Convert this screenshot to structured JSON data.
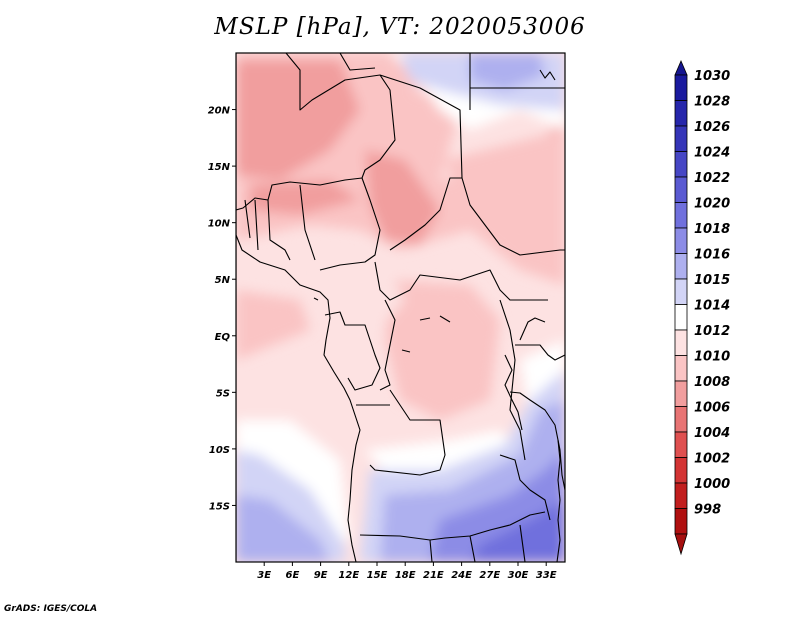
{
  "title": "MSLP [hPa], VT: 2020053006",
  "credit": "GrADS: IGES/COLA",
  "map": {
    "lon_range": [
      0,
      35
    ],
    "lat_range": [
      -20,
      25
    ],
    "lon_ticks": [
      {
        "value": 3,
        "label": "3E"
      },
      {
        "value": 6,
        "label": "6E"
      },
      {
        "value": 9,
        "label": "9E"
      },
      {
        "value": 12,
        "label": "12E"
      },
      {
        "value": 15,
        "label": "15E"
      },
      {
        "value": 18,
        "label": "18E"
      },
      {
        "value": 21,
        "label": "21E"
      },
      {
        "value": 24,
        "label": "24E"
      },
      {
        "value": 27,
        "label": "27E"
      },
      {
        "value": 30,
        "label": "30E"
      },
      {
        "value": 33,
        "label": "33E"
      }
    ],
    "lat_ticks": [
      {
        "value": 20,
        "label": "20N"
      },
      {
        "value": 15,
        "label": "15N"
      },
      {
        "value": 10,
        "label": "10N"
      },
      {
        "value": 5,
        "label": "5N"
      },
      {
        "value": 0,
        "label": "EQ"
      },
      {
        "value": -5,
        "label": "5S"
      },
      {
        "value": -10,
        "label": "10S"
      },
      {
        "value": -15,
        "label": "15S"
      }
    ]
  },
  "colorbar": {
    "levels": [
      {
        "label": "1030",
        "color": "#1a1a9e"
      },
      {
        "label": "1028",
        "color": "#2626ab"
      },
      {
        "label": "1026",
        "color": "#3535b8"
      },
      {
        "label": "1024",
        "color": "#4646c5"
      },
      {
        "label": "1022",
        "color": "#5a5ad2"
      },
      {
        "label": "1020",
        "color": "#7070dd"
      },
      {
        "label": "1018",
        "color": "#8c8ce6"
      },
      {
        "label": "1016",
        "color": "#aeb0ef"
      },
      {
        "label": "1015",
        "color": "#d2d4f6"
      },
      {
        "label": "1014",
        "color": "#ffffff"
      },
      {
        "label": "1012",
        "color": "#fde2e2"
      },
      {
        "label": "1010",
        "color": "#fac4c4"
      },
      {
        "label": "1008",
        "color": "#f19e9e"
      },
      {
        "label": "1006",
        "color": "#e87474"
      },
      {
        "label": "1004",
        "color": "#df5050"
      },
      {
        "label": "1002",
        "color": "#d33434"
      },
      {
        "label": "1000",
        "color": "#c21e1e"
      },
      {
        "label": "998",
        "color": "#b01010"
      }
    ],
    "top_extension_color": "#161690",
    "bottom_extension_color": "#a50f0f"
  }
}
